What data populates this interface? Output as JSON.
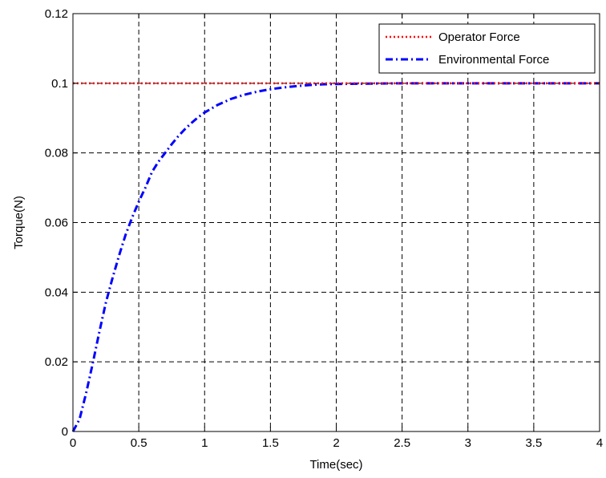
{
  "chart_data": {
    "type": "line",
    "title": "",
    "xlabel": "Time(sec)",
    "ylabel": "Torque(N)",
    "xlim": [
      0,
      4
    ],
    "ylim": [
      0,
      0.12
    ],
    "x_ticks": [
      "0",
      "0.5",
      "1",
      "1.5",
      "2",
      "2.5",
      "3",
      "3.5",
      "4"
    ],
    "y_ticks": [
      "0",
      "0.02",
      "0.04",
      "0.06",
      "0.08",
      "0.1",
      "0.12"
    ],
    "grid": true,
    "legend_position": "top-right",
    "series": [
      {
        "name": "Operator Force",
        "color": "#ff0000",
        "style": "dotted",
        "x": [
          0,
          4
        ],
        "y": [
          0.1,
          0.1
        ]
      },
      {
        "name": "Environmental Force",
        "color": "#0000ff",
        "style": "dash-dot",
        "x": [
          0,
          0.05,
          0.1,
          0.15,
          0.2,
          0.25,
          0.3,
          0.35,
          0.4,
          0.45,
          0.5,
          0.55,
          0.6,
          0.65,
          0.7,
          0.75,
          0.8,
          0.85,
          0.9,
          0.95,
          1.0,
          1.1,
          1.2,
          1.3,
          1.4,
          1.5,
          1.6,
          1.7,
          1.8,
          1.9,
          2.0,
          2.25,
          2.5,
          3.0,
          3.5,
          4.0
        ],
        "y": [
          0,
          0.0035,
          0.011,
          0.0195,
          0.0285,
          0.037,
          0.044,
          0.0505,
          0.0565,
          0.0615,
          0.066,
          0.07,
          0.0745,
          0.0775,
          0.08,
          0.0825,
          0.0848,
          0.0868,
          0.0886,
          0.0902,
          0.0916,
          0.0938,
          0.0955,
          0.0967,
          0.0976,
          0.0983,
          0.0988,
          0.0992,
          0.0995,
          0.0997,
          0.0998,
          0.0999,
          0.1,
          0.1,
          0.1,
          0.1
        ]
      }
    ]
  }
}
